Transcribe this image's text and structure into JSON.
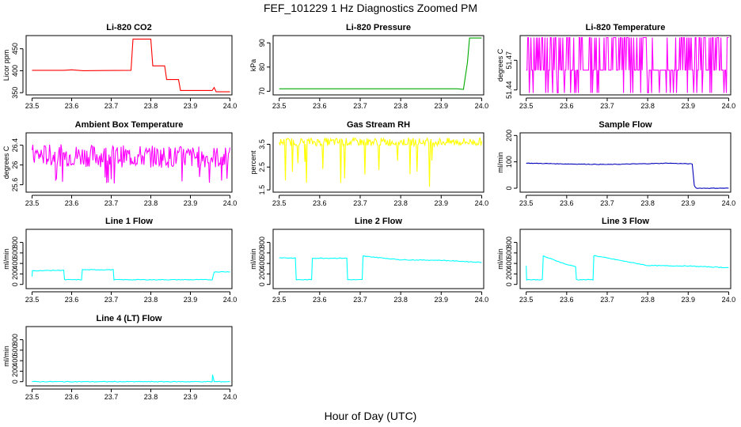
{
  "title": "FEF_101229  1 Hz Diagnostics Zoomed PM",
  "xlabel": "Hour of Day (UTC)",
  "chart_data": [
    {
      "type": "line",
      "title": "Li-820 CO2",
      "ylabel": "Licor ppm",
      "color": "#ff0000",
      "xticks": [
        "23.5",
        "23.6",
        "23.7",
        "23.8",
        "23.9",
        "24.0"
      ],
      "xlim": [
        23.485,
        24.005
      ],
      "yticks": [
        350,
        400,
        450
      ],
      "ylim": [
        345,
        480
      ],
      "x": [
        23.5,
        23.58,
        23.6,
        23.63,
        23.75,
        23.755,
        23.8,
        23.805,
        23.835,
        23.84,
        23.87,
        23.875,
        23.955,
        23.96,
        23.965,
        24.0
      ],
      "y": [
        401,
        401,
        402,
        400,
        401,
        472,
        472,
        411,
        411,
        380,
        380,
        355,
        355,
        362,
        352,
        352
      ]
    },
    {
      "type": "line",
      "title": "Li-820 Pressure",
      "ylabel": "kPa",
      "color": "#00aa00",
      "xticks": [
        "23.5",
        "23.6",
        "23.7",
        "23.8",
        "23.9",
        "24.0"
      ],
      "xlim": [
        23.485,
        24.005
      ],
      "yticks": [
        70,
        80,
        90
      ],
      "ylim": [
        68.5,
        93
      ],
      "x": [
        23.5,
        23.94,
        23.955,
        23.965,
        23.97,
        23.975,
        24.0
      ],
      "y": [
        71,
        71,
        70.8,
        82,
        92,
        92,
        92
      ]
    },
    {
      "type": "line",
      "title": "Li-820 Temperature",
      "ylabel": "degrees C",
      "color": "#ff00ff",
      "xticks": [
        "23.5",
        "23.6",
        "23.7",
        "23.8",
        "23.9",
        "24.0"
      ],
      "xlim": [
        23.485,
        24.005
      ],
      "yticks": [
        51.44,
        51.47
      ],
      "ylim": [
        51.435,
        51.495
      ],
      "x": [
        23.5,
        24.0
      ],
      "y": [
        51.46,
        51.46
      ]
    },
    {
      "type": "line",
      "title": "Ambient Box Temperature",
      "ylabel": "degrees C",
      "color": "#ff00ff",
      "xticks": [
        "23.5",
        "23.6",
        "23.7",
        "23.8",
        "23.9",
        "24.0"
      ],
      "xlim": [
        23.485,
        24.005
      ],
      "yticks": [
        25.6,
        26.0,
        26.4
      ],
      "ylim": [
        25.45,
        26.65
      ],
      "x": [
        23.5,
        24.0
      ],
      "y": [
        26.2,
        26.15
      ]
    },
    {
      "type": "line",
      "title": "Gas Stream RH",
      "ylabel": "percent",
      "color": "#ffff00",
      "xticks": [
        "23.5",
        "23.6",
        "23.7",
        "23.8",
        "23.9",
        "24.0"
      ],
      "xlim": [
        23.485,
        24.005
      ],
      "yticks": [
        1.5,
        2.5,
        3.5
      ],
      "ylim": [
        1.4,
        4.0
      ],
      "x": [
        23.5,
        24.0
      ],
      "y": [
        3.6,
        3.6
      ]
    },
    {
      "type": "line",
      "title": "Sample Flow",
      "ylabel": "ml/min",
      "color": "#0000bb",
      "xticks": [
        "23.5",
        "23.6",
        "23.7",
        "23.8",
        "23.9",
        "24.0"
      ],
      "xlim": [
        23.485,
        24.005
      ],
      "yticks": [
        0,
        100,
        200
      ],
      "ylim": [
        -15,
        210
      ],
      "x": [
        23.5,
        23.6,
        23.7,
        23.8,
        23.85,
        23.91,
        23.915,
        23.92,
        24.0
      ],
      "y": [
        95,
        92,
        90,
        93,
        95,
        92,
        10,
        0,
        0
      ]
    },
    {
      "type": "line",
      "title": "Line 1 Flow",
      "ylabel": "ml/min",
      "color": "#00ffff",
      "xticks": [
        "23.5",
        "23.6",
        "23.7",
        "23.8",
        "23.9",
        "24.0"
      ],
      "xlim": [
        23.485,
        24.005
      ],
      "yticks": [
        0,
        200,
        400,
        600,
        800
      ],
      "ylim": [
        -80,
        1050
      ],
      "x": [
        23.5,
        23.501,
        23.58,
        23.582,
        23.625,
        23.627,
        23.705,
        23.707,
        23.955,
        23.96,
        24.0
      ],
      "y": [
        150,
        260,
        270,
        90,
        90,
        280,
        280,
        90,
        90,
        240,
        240
      ]
    },
    {
      "type": "line",
      "title": "Line 2 Flow",
      "ylabel": "ml/min",
      "color": "#00ffff",
      "xticks": [
        "23.5",
        "23.6",
        "23.7",
        "23.8",
        "23.9",
        "24.0"
      ],
      "xlim": [
        23.485,
        24.005
      ],
      "yticks": [
        0,
        200,
        400,
        600,
        800
      ],
      "ylim": [
        -80,
        1050
      ],
      "x": [
        23.5,
        23.54,
        23.542,
        23.58,
        23.582,
        23.667,
        23.669,
        23.705,
        23.707,
        23.8,
        23.9,
        24.0
      ],
      "y": [
        510,
        500,
        90,
        90,
        500,
        500,
        90,
        90,
        540,
        470,
        460,
        420
      ]
    },
    {
      "type": "line",
      "title": "Line 3 Flow",
      "ylabel": "ml/min",
      "color": "#00ffff",
      "xticks": [
        "23.5",
        "23.6",
        "23.7",
        "23.8",
        "23.9",
        "24.0"
      ],
      "xlim": [
        23.485,
        24.005
      ],
      "yticks": [
        0,
        200,
        400,
        600,
        800
      ],
      "ylim": [
        -80,
        1050
      ],
      "x": [
        23.5,
        23.501,
        23.54,
        23.542,
        23.6,
        23.622,
        23.624,
        23.665,
        23.667,
        23.8,
        23.9,
        24.0
      ],
      "y": [
        360,
        90,
        90,
        540,
        380,
        340,
        90,
        90,
        550,
        360,
        350,
        320
      ]
    },
    {
      "type": "line",
      "title": "Line 4 (LT) Flow",
      "ylabel": "ml/min",
      "color": "#00ffff",
      "xticks": [
        "23.5",
        "23.6",
        "23.7",
        "23.8",
        "23.9",
        "24.0"
      ],
      "xlim": [
        23.485,
        24.005
      ],
      "yticks": [
        0,
        200,
        400,
        600,
        800
      ],
      "ylim": [
        -80,
        1050
      ],
      "x": [
        23.5,
        23.955,
        23.956,
        23.96,
        24.0
      ],
      "y": [
        0,
        0,
        130,
        0,
        0
      ]
    }
  ]
}
